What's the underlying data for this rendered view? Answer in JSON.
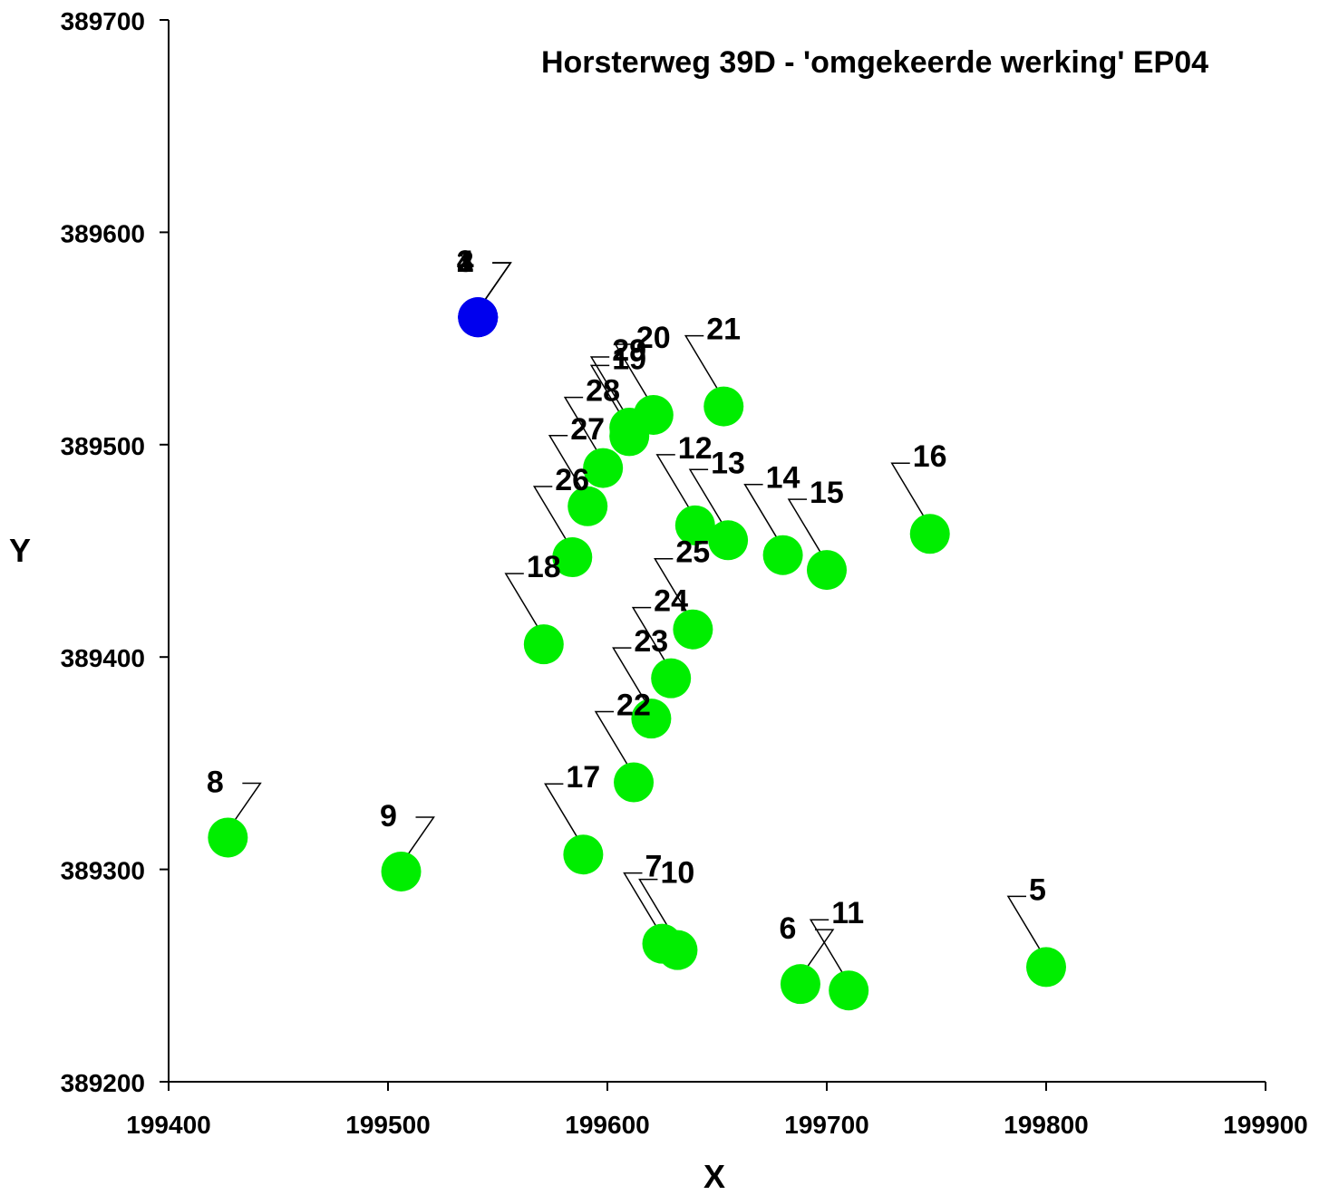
{
  "chart_data": {
    "type": "scatter",
    "title": "Horsterweg 39D - 'omgekeerde werking' EP04",
    "xlabel": "X",
    "ylabel": "Y",
    "xlim": [
      199400,
      199900
    ],
    "ylim": [
      389200,
      389700
    ],
    "xticks": [
      "199400",
      "199500",
      "199600",
      "199700",
      "199800",
      "199900"
    ],
    "yticks": [
      "389200",
      "389300",
      "389400",
      "389500",
      "389600",
      "389700"
    ],
    "colors": {
      "source": "#0000ee",
      "receptor": "#00ee00"
    },
    "points": [
      {
        "label": "1",
        "x": 199541,
        "y": 389560,
        "color": "source"
      },
      {
        "label": "2",
        "x": 199541,
        "y": 389560,
        "color": "source"
      },
      {
        "label": "3",
        "x": 199541,
        "y": 389560,
        "color": "source"
      },
      {
        "label": "4",
        "x": 199541,
        "y": 389560,
        "color": "source"
      },
      {
        "label": "5",
        "x": 199800,
        "y": 389254,
        "color": "receptor"
      },
      {
        "label": "6",
        "x": 199688,
        "y": 389246,
        "color": "receptor"
      },
      {
        "label": "7",
        "x": 199625,
        "y": 389265,
        "color": "receptor"
      },
      {
        "label": "8",
        "x": 199427,
        "y": 389315,
        "color": "receptor"
      },
      {
        "label": "9",
        "x": 199506,
        "y": 389299,
        "color": "receptor"
      },
      {
        "label": "10",
        "x": 199632,
        "y": 389262,
        "color": "receptor"
      },
      {
        "label": "11",
        "x": 199710,
        "y": 389243,
        "color": "receptor"
      },
      {
        "label": "12",
        "x": 199640,
        "y": 389462,
        "color": "receptor"
      },
      {
        "label": "13",
        "x": 199655,
        "y": 389455,
        "color": "receptor"
      },
      {
        "label": "14",
        "x": 199680,
        "y": 389448,
        "color": "receptor"
      },
      {
        "label": "15",
        "x": 199700,
        "y": 389441,
        "color": "receptor"
      },
      {
        "label": "16",
        "x": 199747,
        "y": 389458,
        "color": "receptor"
      },
      {
        "label": "17",
        "x": 199589,
        "y": 389307,
        "color": "receptor"
      },
      {
        "label": "18",
        "x": 199571,
        "y": 389406,
        "color": "receptor"
      },
      {
        "label": "19",
        "x": 199610,
        "y": 389504,
        "color": "receptor"
      },
      {
        "label": "20",
        "x": 199621,
        "y": 389514,
        "color": "receptor"
      },
      {
        "label": "21",
        "x": 199653,
        "y": 389518,
        "color": "receptor"
      },
      {
        "label": "22",
        "x": 199612,
        "y": 389341,
        "color": "receptor"
      },
      {
        "label": "23",
        "x": 199620,
        "y": 389371,
        "color": "receptor"
      },
      {
        "label": "24",
        "x": 199629,
        "y": 389390,
        "color": "receptor"
      },
      {
        "label": "25",
        "x": 199639,
        "y": 389413,
        "color": "receptor"
      },
      {
        "label": "26",
        "x": 199584,
        "y": 389447,
        "color": "receptor"
      },
      {
        "label": "27",
        "x": 199591,
        "y": 389471,
        "color": "receptor"
      },
      {
        "label": "28",
        "x": 199598,
        "y": 389489,
        "color": "receptor"
      },
      {
        "label": "29",
        "x": 199610,
        "y": 389508,
        "color": "receptor"
      }
    ]
  }
}
